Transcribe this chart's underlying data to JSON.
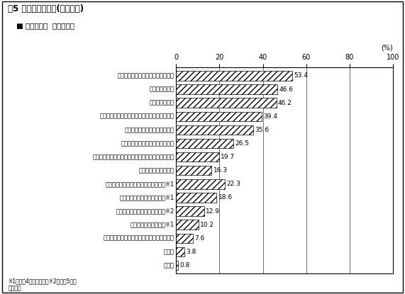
{
  "title": "問5 住宅の選択理由(複数回答)",
  "legend_label": "■ 三大都市圏  令和５年度",
  "categories": [
    "信頼できる住宅メーカーだったから",
    "新築住宅だから",
    "一戸建てだから",
    "住宅のデザイン・広さ・設備等が良かったから",
    "住宅の立地環境が良かったから",
    "昔から住んでいる地域だったから",
    "親・子供などと同居・または近くに住んでいたから",
    "価格が適切だったから",
    "災害発生リスクの低い地域だったから※1",
    "交通の利便性が良かったから※1",
    "子育てに適した環境だったから※2",
    "職場から近かったから※1",
    "将来、売却した場合の価格が期待できるから",
    "その他",
    "無回答"
  ],
  "values": [
    53.4,
    46.6,
    46.2,
    39.4,
    35.6,
    26.5,
    19.7,
    16.3,
    22.3,
    18.6,
    12.9,
    10.2,
    7.6,
    3.8,
    0.8
  ],
  "xlim": [
    0,
    100
  ],
  "xticks": [
    0,
    20,
    40,
    60,
    80,
    100
  ],
  "xlabel_unit": "(%)",
  "footnote1": "※1は令和4年度より調査※2は令和5年度",
  "footnote2": "より調査",
  "background_color": "#ffffff"
}
